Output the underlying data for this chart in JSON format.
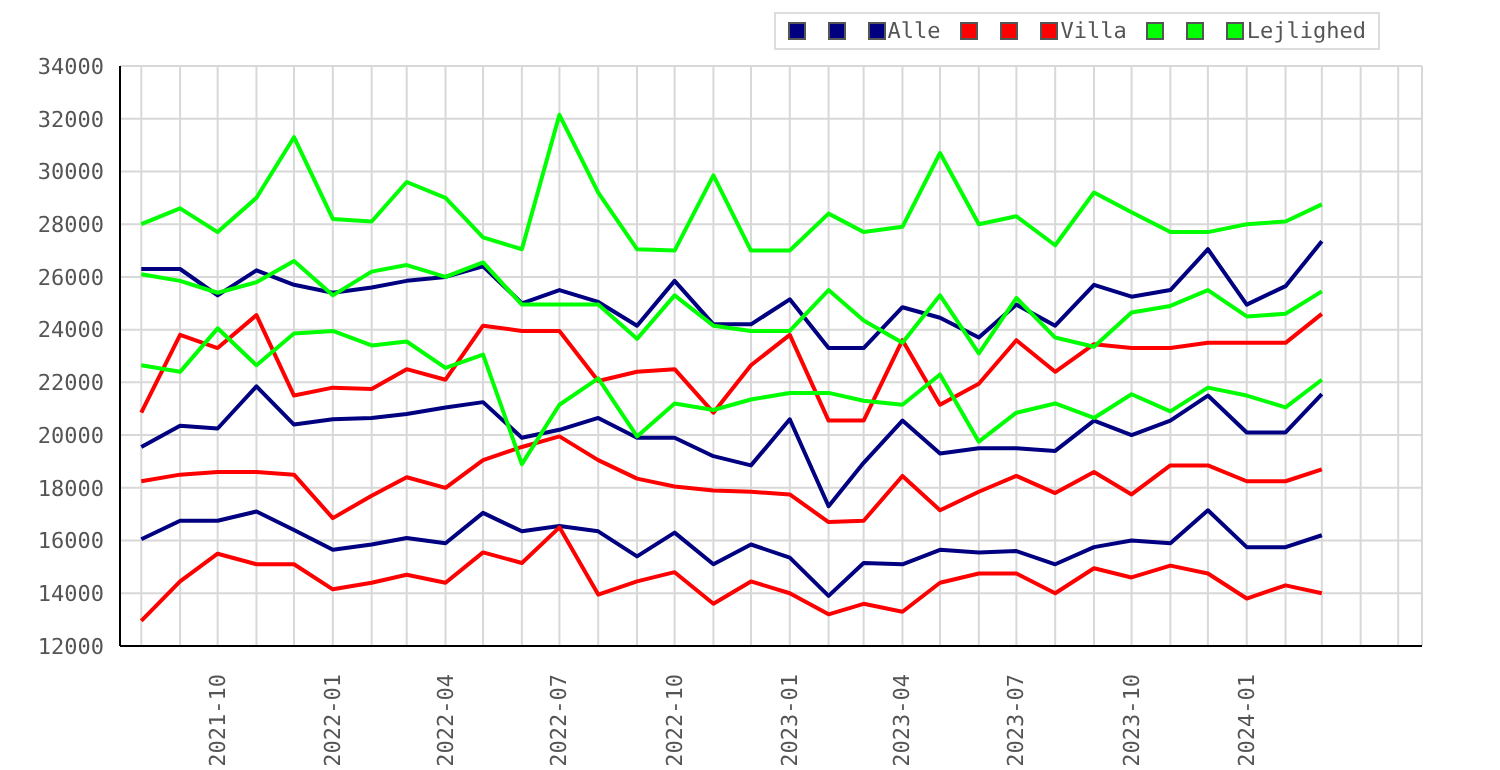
{
  "chart_data": {
    "type": "line",
    "x": [
      "2021-08",
      "2021-09",
      "2021-10",
      "2021-11",
      "2021-12",
      "2022-01",
      "2022-02",
      "2022-03",
      "2022-04",
      "2022-05",
      "2022-06",
      "2022-07",
      "2022-08",
      "2022-09",
      "2022-10",
      "2022-11",
      "2022-12",
      "2023-01",
      "2023-02",
      "2023-03",
      "2023-04",
      "2023-05",
      "2023-06",
      "2023-07",
      "2023-08",
      "2023-09",
      "2023-10",
      "2023-11",
      "2023-12",
      "2024-01",
      "2024-02",
      "2024-03"
    ],
    "series": [
      {
        "color": "#000080",
        "values": [
          26300,
          26300,
          25300,
          26250,
          25700,
          25400,
          25600,
          25850,
          26000,
          26400,
          25000,
          25500,
          25050,
          24150,
          25850,
          24200,
          24200,
          25150,
          23300,
          23300,
          24850,
          24450,
          23700,
          24950,
          24150,
          25700,
          25250,
          25500,
          27050,
          24950,
          25650,
          27350
        ]
      },
      {
        "color": "#000080",
        "values": [
          19550,
          20350,
          20250,
          21850,
          20400,
          20600,
          20650,
          20800,
          21050,
          21250,
          19900,
          20200,
          20650,
          19900,
          19900,
          19200,
          18850,
          20600,
          17300,
          18950,
          20550,
          19300,
          19500,
          19500,
          19400,
          20550,
          20000,
          20550,
          21500,
          20100,
          20100,
          21550
        ]
      },
      {
        "name": "Alle",
        "color": "#000080",
        "values": [
          16050,
          16750,
          16750,
          17100,
          16400,
          15650,
          15850,
          16100,
          15900,
          17050,
          16350,
          16550,
          16350,
          15400,
          16300,
          15100,
          15850,
          15350,
          13900,
          15150,
          15100,
          15650,
          15550,
          15600,
          15100,
          15750,
          16000,
          15900,
          17150,
          15750,
          15750,
          16200
        ]
      },
      {
        "color": "#ff0000",
        "values": [
          20850,
          23800,
          23300,
          24550,
          21500,
          21800,
          21750,
          22500,
          22100,
          24150,
          23950,
          23950,
          22050,
          22400,
          22500,
          20850,
          22650,
          23800,
          20550,
          20550,
          23600,
          21150,
          21950,
          23600,
          22400,
          23450,
          23300,
          23300,
          23500,
          23500,
          23500,
          24600
        ]
      },
      {
        "color": "#ff0000",
        "values": [
          18250,
          18500,
          18600,
          18600,
          18500,
          16850,
          17700,
          18400,
          18000,
          19050,
          19550,
          19950,
          19050,
          18350,
          18050,
          17900,
          17850,
          17750,
          16700,
          16750,
          18450,
          17150,
          17850,
          18450,
          17800,
          18600,
          17750,
          18850,
          18850,
          18250,
          18250,
          18700
        ]
      },
      {
        "name": "Villa",
        "color": "#ff0000",
        "values": [
          12950,
          14450,
          15500,
          15100,
          15100,
          14150,
          14400,
          14700,
          14400,
          15550,
          15150,
          16500,
          13950,
          14450,
          14800,
          13600,
          14450,
          14000,
          13200,
          13600,
          13300,
          14400,
          14750,
          14750,
          14000,
          14950,
          14600,
          15050,
          14750,
          13800,
          14300,
          14000
        ]
      },
      {
        "color": "#00ff00",
        "values": [
          28000,
          28600,
          27700,
          29000,
          31300,
          28200,
          28100,
          29600,
          29000,
          27500,
          27050,
          32150,
          29200,
          27050,
          27000,
          29850,
          27000,
          27000,
          28400,
          27700,
          27900,
          30700,
          28000,
          28300,
          27200,
          29200,
          28450,
          27700,
          27700,
          28000,
          28100,
          28750
        ]
      },
      {
        "color": "#00ff00",
        "values": [
          26100,
          25850,
          25400,
          25800,
          26600,
          25300,
          26200,
          26450,
          26000,
          26550,
          24950,
          24950,
          24950,
          23650,
          25300,
          24150,
          23950,
          23950,
          25500,
          24350,
          23500,
          25300,
          23100,
          25200,
          23700,
          23350,
          24650,
          24900,
          25500,
          24500,
          24600,
          25450
        ]
      },
      {
        "name": "Lejlighed",
        "color": "#00ff00",
        "values": [
          22650,
          22400,
          24050,
          22650,
          23850,
          23950,
          23400,
          23550,
          22550,
          23050,
          18900,
          21150,
          22150,
          19950,
          21200,
          20950,
          21350,
          21600,
          21600,
          21300,
          21150,
          22300,
          19750,
          20850,
          21200,
          20650,
          21550,
          20900,
          21800,
          21500,
          21050,
          22100
        ]
      }
    ],
    "xlim": [
      "2021-07-15",
      "2024-05-20"
    ],
    "xticks": [
      {
        "value": "2021-08",
        "label": null
      },
      {
        "value": "2021-09",
        "label": null
      },
      "2021-10",
      {
        "value": "2021-11",
        "label": null
      },
      {
        "value": "2021-12",
        "label": null
      },
      "2022-01",
      {
        "value": "2022-02",
        "label": null
      },
      {
        "value": "2022-03",
        "label": null
      },
      "2022-04",
      {
        "value": "2022-05",
        "label": null
      },
      {
        "value": "2022-06",
        "label": null
      },
      "2022-07",
      {
        "value": "2022-08",
        "label": null
      },
      {
        "value": "2022-09",
        "label": null
      },
      "2022-10",
      {
        "value": "2022-11",
        "label": null
      },
      {
        "value": "2022-12",
        "label": null
      },
      "2023-01",
      {
        "value": "2023-02",
        "label": null
      },
      {
        "value": "2023-03",
        "label": null
      },
      "2023-04",
      {
        "value": "2023-05",
        "label": null
      },
      {
        "value": "2023-06",
        "label": null
      },
      "2023-07",
      {
        "value": "2023-08",
        "label": null
      },
      {
        "value": "2023-09",
        "label": null
      },
      "2023-10",
      {
        "value": "2023-11",
        "label": null
      },
      {
        "value": "2023-12",
        "label": null
      },
      "2024-01",
      {
        "value": "2024-02",
        "label": null
      },
      {
        "value": "2024-03",
        "label": null
      },
      {
        "value": "2024-04",
        "label": null
      },
      {
        "value": "2024-05",
        "label": null
      }
    ],
    "ylim": [
      12000,
      34000
    ],
    "yticks": [
      12000,
      14000,
      16000,
      18000,
      20000,
      22000,
      24000,
      26000,
      28000,
      30000,
      32000,
      34000
    ],
    "grid": true,
    "legend": "top right",
    "marker": "none",
    "line_style": "solid"
  }
}
